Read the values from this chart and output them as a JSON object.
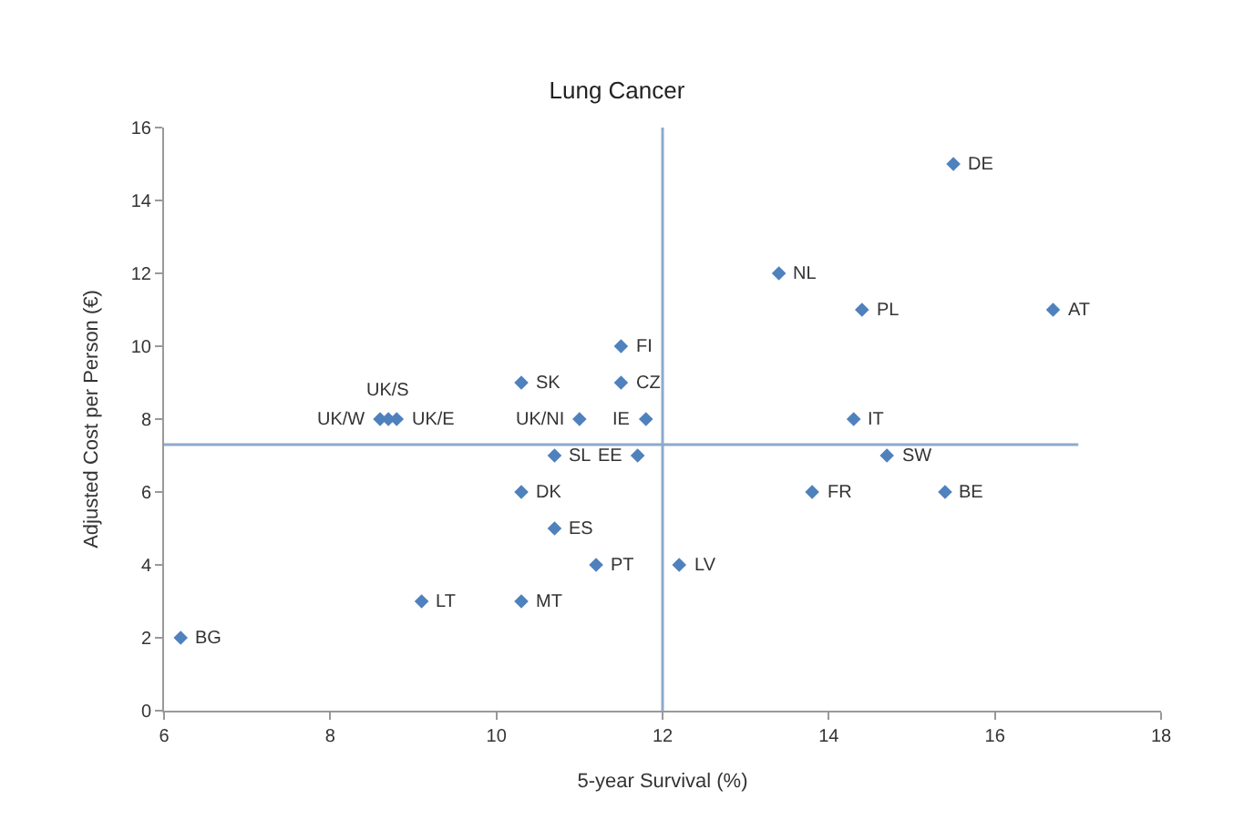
{
  "chart_data": {
    "type": "scatter",
    "title": "Lung Cancer",
    "xlabel": "5-year Survival (%)",
    "ylabel": "Adjusted Cost per Person (€)",
    "x": [
      15.5,
      13.4,
      14.4,
      16.7,
      14.3,
      14.7,
      13.8,
      15.4,
      11.5,
      11.5,
      10.3,
      8.6,
      8.7,
      8.8,
      11.0,
      11.8,
      10.7,
      11.7,
      10.3,
      10.7,
      11.2,
      12.2,
      9.1,
      10.3,
      6.2
    ],
    "series": [
      {
        "color": "#4f81bd",
        "values": [
          15,
          12,
          11,
          11,
          8,
          7,
          6,
          6,
          10,
          9,
          9,
          8,
          8,
          8,
          8,
          8,
          7,
          7,
          6,
          5,
          4,
          4,
          3,
          3,
          2
        ]
      }
    ],
    "annotations": [
      {
        "text": "DE",
        "x": 15.5,
        "y": 15
      },
      {
        "text": "NL",
        "x": 13.4,
        "y": 12
      },
      {
        "text": "PL",
        "x": 14.4,
        "y": 11
      },
      {
        "text": "AT",
        "x": 16.7,
        "y": 11
      },
      {
        "text": "IT",
        "x": 14.3,
        "y": 8
      },
      {
        "text": "SW",
        "x": 14.7,
        "y": 7
      },
      {
        "text": "FR",
        "x": 13.8,
        "y": 6
      },
      {
        "text": "BE",
        "x": 15.4,
        "y": 6
      },
      {
        "text": "FI",
        "x": 11.5,
        "y": 10
      },
      {
        "text": "CZ",
        "x": 11.5,
        "y": 9
      },
      {
        "text": "SK",
        "x": 10.3,
        "y": 9
      },
      {
        "text": "UK/W",
        "x": 8.6,
        "y": 8
      },
      {
        "text": "UK/S",
        "x": 8.7,
        "y": 8
      },
      {
        "text": "UK/E",
        "x": 8.8,
        "y": 8
      },
      {
        "text": "UK/NI",
        "x": 11.0,
        "y": 8
      },
      {
        "text": "IE",
        "x": 11.8,
        "y": 8
      },
      {
        "text": "SL",
        "x": 10.7,
        "y": 7
      },
      {
        "text": "EE",
        "x": 11.7,
        "y": 7
      },
      {
        "text": "DK",
        "x": 10.3,
        "y": 6
      },
      {
        "text": "ES",
        "x": 10.7,
        "y": 5
      },
      {
        "text": "PT",
        "x": 11.2,
        "y": 4
      },
      {
        "text": "LV",
        "x": 12.2,
        "y": 4
      },
      {
        "text": "LT",
        "x": 9.1,
        "y": 3
      },
      {
        "text": "MT",
        "x": 10.3,
        "y": 3
      },
      {
        "text": "BG",
        "x": 6.2,
        "y": 2
      }
    ],
    "ref_lines": [
      {
        "axis": "x",
        "value": 12,
        "color": "#8eaacb"
      },
      {
        "axis": "y",
        "value": 7.3,
        "color": "#8eaacb"
      }
    ],
    "xlim": [
      6,
      18
    ],
    "xticks": [
      6,
      8,
      10,
      12,
      14,
      16,
      18
    ],
    "ylim": [
      0,
      16
    ],
    "yticks": [
      0,
      2,
      4,
      6,
      8,
      10,
      12,
      14,
      16
    ],
    "grid": false,
    "legend": false,
    "marker": "diamond"
  }
}
